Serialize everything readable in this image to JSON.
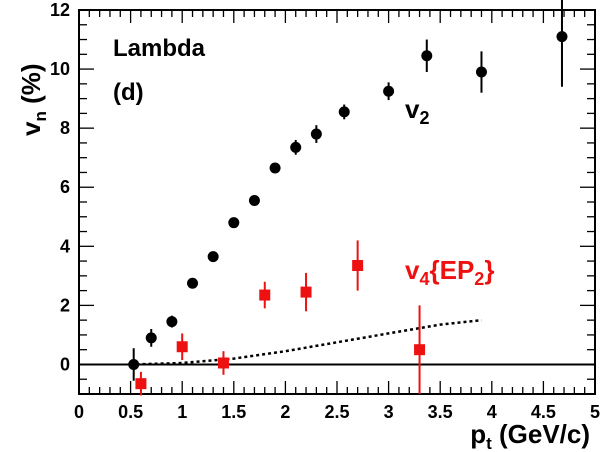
{
  "chart_data": {
    "type": "scatter",
    "xlim": [
      0,
      5
    ],
    "ylim": [
      -1,
      12
    ],
    "x_ticks": [
      "0",
      "0.5",
      "1",
      "1.5",
      "2",
      "2.5",
      "3",
      "3.5",
      "4",
      "4.5",
      "5"
    ],
    "y_ticks": [
      "0",
      "2",
      "4",
      "6",
      "8",
      "10",
      "12"
    ],
    "grid": false,
    "annotations": {
      "line1": "Lambda",
      "line2": "(d)"
    },
    "series": [
      {
        "name": "v2",
        "marker": "circle",
        "color": "#000000",
        "x": [
          0.53,
          0.7,
          0.9,
          1.1,
          1.3,
          1.5,
          1.7,
          1.9,
          2.1,
          2.3,
          2.57,
          3.0,
          3.37,
          3.9,
          4.68
        ],
        "y": [
          0.0,
          0.9,
          1.45,
          2.75,
          3.65,
          4.8,
          5.55,
          6.65,
          7.35,
          7.8,
          8.55,
          9.25,
          10.45,
          9.9,
          11.1
        ],
        "err": [
          0.55,
          0.3,
          0.2,
          0.15,
          0.15,
          0.15,
          0.15,
          0.15,
          0.25,
          0.3,
          0.25,
          0.3,
          0.55,
          0.7,
          1.7
        ]
      },
      {
        "name": "v4{EP2}",
        "marker": "square",
        "color": "#ee1111",
        "x": [
          0.6,
          1.0,
          1.4,
          1.8,
          2.2,
          2.7,
          3.3
        ],
        "y": [
          -0.65,
          0.6,
          0.05,
          2.35,
          2.45,
          3.35,
          0.5
        ],
        "err": [
          0.4,
          0.45,
          0.4,
          0.45,
          0.65,
          0.85,
          1.5
        ]
      }
    ],
    "curve": {
      "style": "dotted",
      "x": [
        0.5,
        1.0,
        1.5,
        2.0,
        2.5,
        3.0,
        3.5,
        3.9
      ],
      "y": [
        0.0,
        0.05,
        0.2,
        0.45,
        0.75,
        1.05,
        1.35,
        1.5
      ]
    }
  },
  "labels": {
    "xlabel_main": "p",
    "xlabel_sub": "t",
    "xlabel_units": " (GeV/c)",
    "ylabel_main": "v",
    "ylabel_sub": "n",
    "ylabel_units": " (%)",
    "v2_main": "v",
    "v2_sub": "2",
    "v4_main": "v",
    "v4_sub": "4",
    "v4_brace_open": "{EP",
    "v4_ep_sub": "2",
    "v4_brace_close": "}"
  }
}
